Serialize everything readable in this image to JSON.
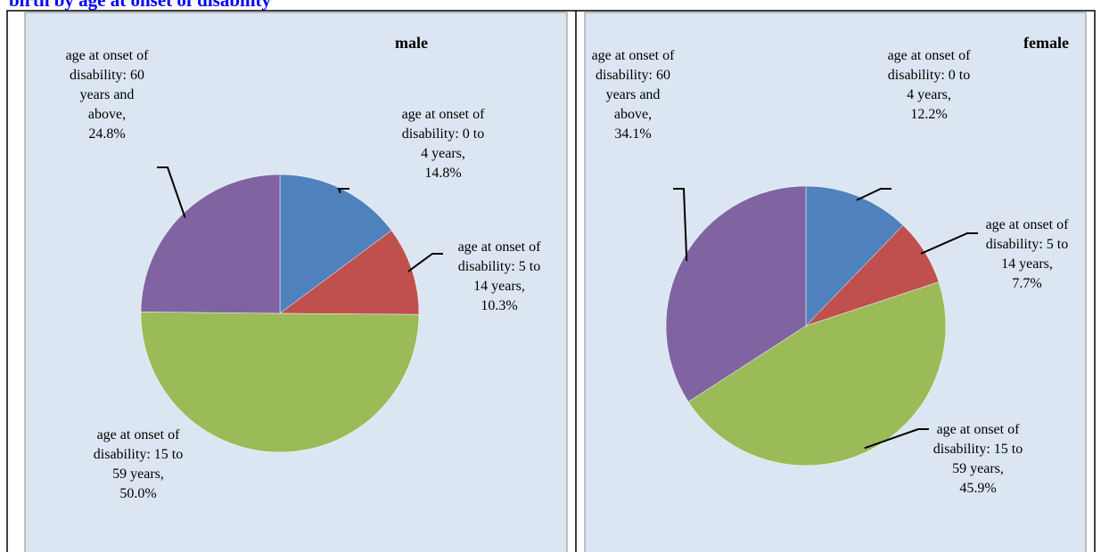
{
  "heading": "birth by age at onset of disability",
  "chart_data": [
    {
      "type": "pie",
      "title": "male",
      "categories": [
        "age at onset of disability: 0 to 4 years",
        "age at onset of disability: 5 to 14 years",
        "age at onset of disability: 15 to 59 years",
        "age at onset of disability: 60 years and above"
      ],
      "values": [
        14.8,
        10.3,
        50.0,
        24.8
      ],
      "value_labels": [
        "14.8%",
        "10.3%",
        "50.0%",
        "24.8%"
      ],
      "colors": [
        "#4f81bd",
        "#c0504d",
        "#9bbb59",
        "#8064a2"
      ]
    },
    {
      "type": "pie",
      "title": "female",
      "categories": [
        "age at onset of disability: 0 to 4 years",
        "age at onset of disability: 5 to 14 years",
        "age at onset of disability: 15 to 59 years",
        "age at onset of disability: 60 years and above"
      ],
      "values": [
        12.2,
        7.7,
        45.9,
        34.1
      ],
      "value_labels": [
        "12.2%",
        "7.7%",
        "45.9%",
        "34.1%"
      ],
      "colors": [
        "#4f81bd",
        "#c0504d",
        "#9bbb59",
        "#8064a2"
      ]
    }
  ]
}
